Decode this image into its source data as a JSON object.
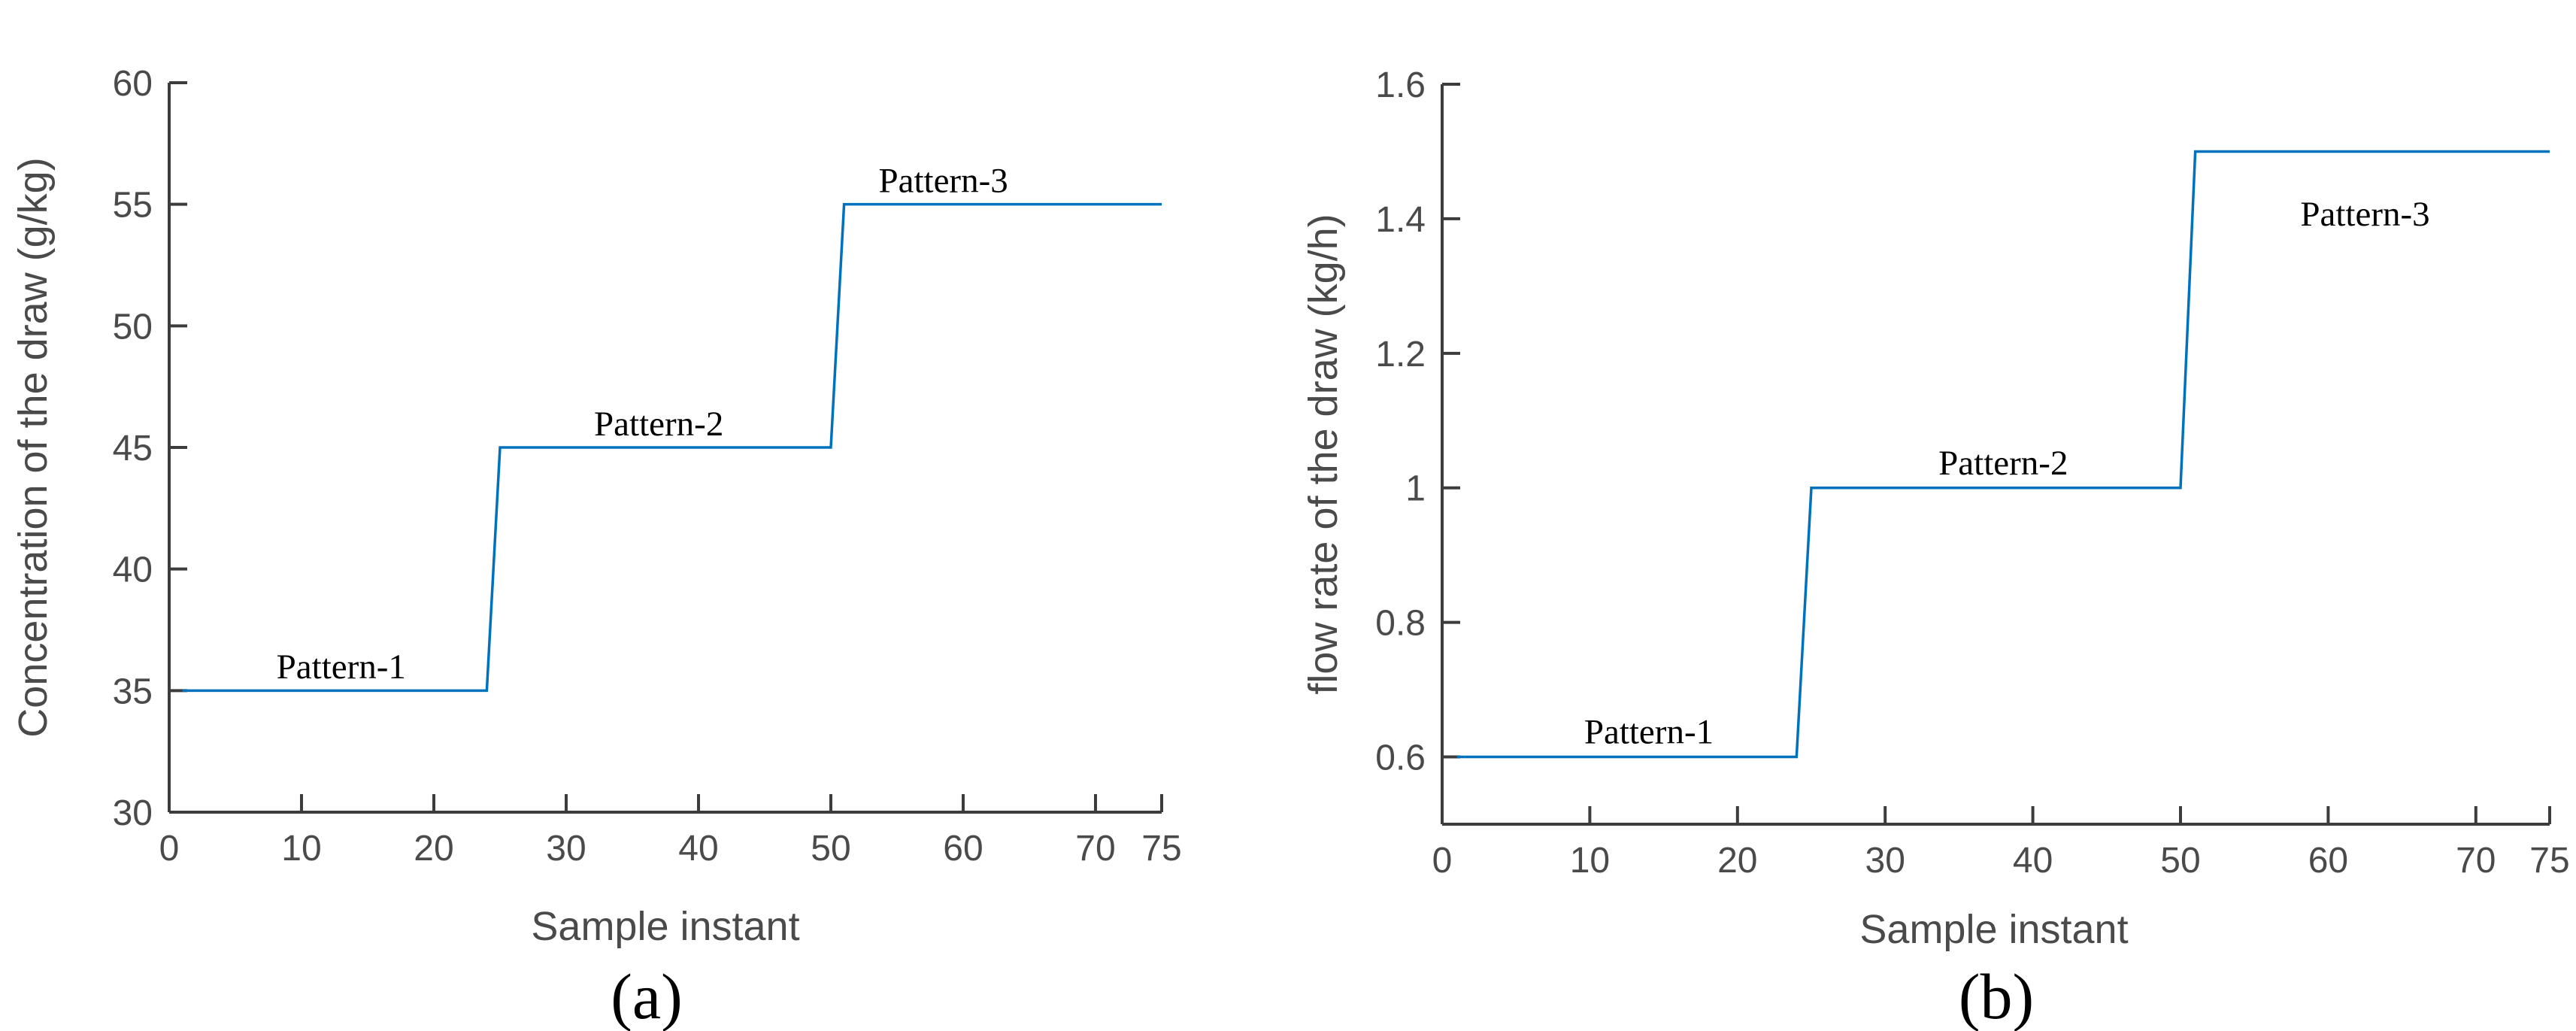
{
  "figure": {
    "background": "#ffffff",
    "line_color": "#0072BD",
    "axis_color": "#3c3c3c",
    "tick_text_color": "#4a4a4a",
    "annotation_color": "#000000"
  },
  "chart_data": [
    {
      "panel": "a",
      "type": "line",
      "title": "",
      "xlabel": "Sample instant",
      "ylabel": "Concentration of the draw (g/kg)",
      "caption": "(a)",
      "xlim": [
        0,
        75
      ],
      "ylim": [
        30,
        60
      ],
      "xticks": [
        0,
        10,
        20,
        30,
        40,
        50,
        60,
        70,
        75
      ],
      "yticks": [
        30,
        35,
        40,
        45,
        50,
        55,
        60
      ],
      "grid": false,
      "legend": "none",
      "x": [
        1,
        24,
        25,
        50,
        51,
        75
      ],
      "y": [
        35,
        35,
        45,
        45,
        55,
        55
      ],
      "segments_note": "step plot: 35 g/kg for samples 1-24, 45 g/kg for 25-50, 55 g/kg for 51-75",
      "annotations": [
        {
          "label": "Pattern-1",
          "x": 13.0,
          "y": 35.5
        },
        {
          "label": "Pattern-2",
          "x": 37.0,
          "y": 45.5
        },
        {
          "label": "Pattern-3",
          "x": 58.5,
          "y": 55.5
        }
      ]
    },
    {
      "panel": "b",
      "type": "line",
      "title": "",
      "xlabel": "Sample instant",
      "ylabel": "flow rate of the draw (kg/h)",
      "caption": "(b)",
      "xlim": [
        0,
        75
      ],
      "ylim": [
        0.5,
        1.6
      ],
      "xticks": [
        0,
        10,
        20,
        30,
        40,
        50,
        60,
        70,
        75
      ],
      "yticks": [
        0.6,
        0.8,
        1,
        1.2,
        1.4,
        1.6
      ],
      "grid": false,
      "legend": "none",
      "x": [
        1,
        24,
        25,
        50,
        51,
        75
      ],
      "y": [
        0.6,
        0.6,
        1.0,
        1.0,
        1.5,
        1.5
      ],
      "segments_note": "step plot: 0.6 kg/h for samples 1-24, 1.0 kg/h for 25-50, 1.5 kg/h for 51-75",
      "annotations": [
        {
          "label": "Pattern-1",
          "x": 14.0,
          "y": 0.62
        },
        {
          "label": "Pattern-2",
          "x": 38.0,
          "y": 1.02
        },
        {
          "label": "Pattern-3",
          "x": 62.5,
          "y": 1.39
        }
      ]
    }
  ]
}
